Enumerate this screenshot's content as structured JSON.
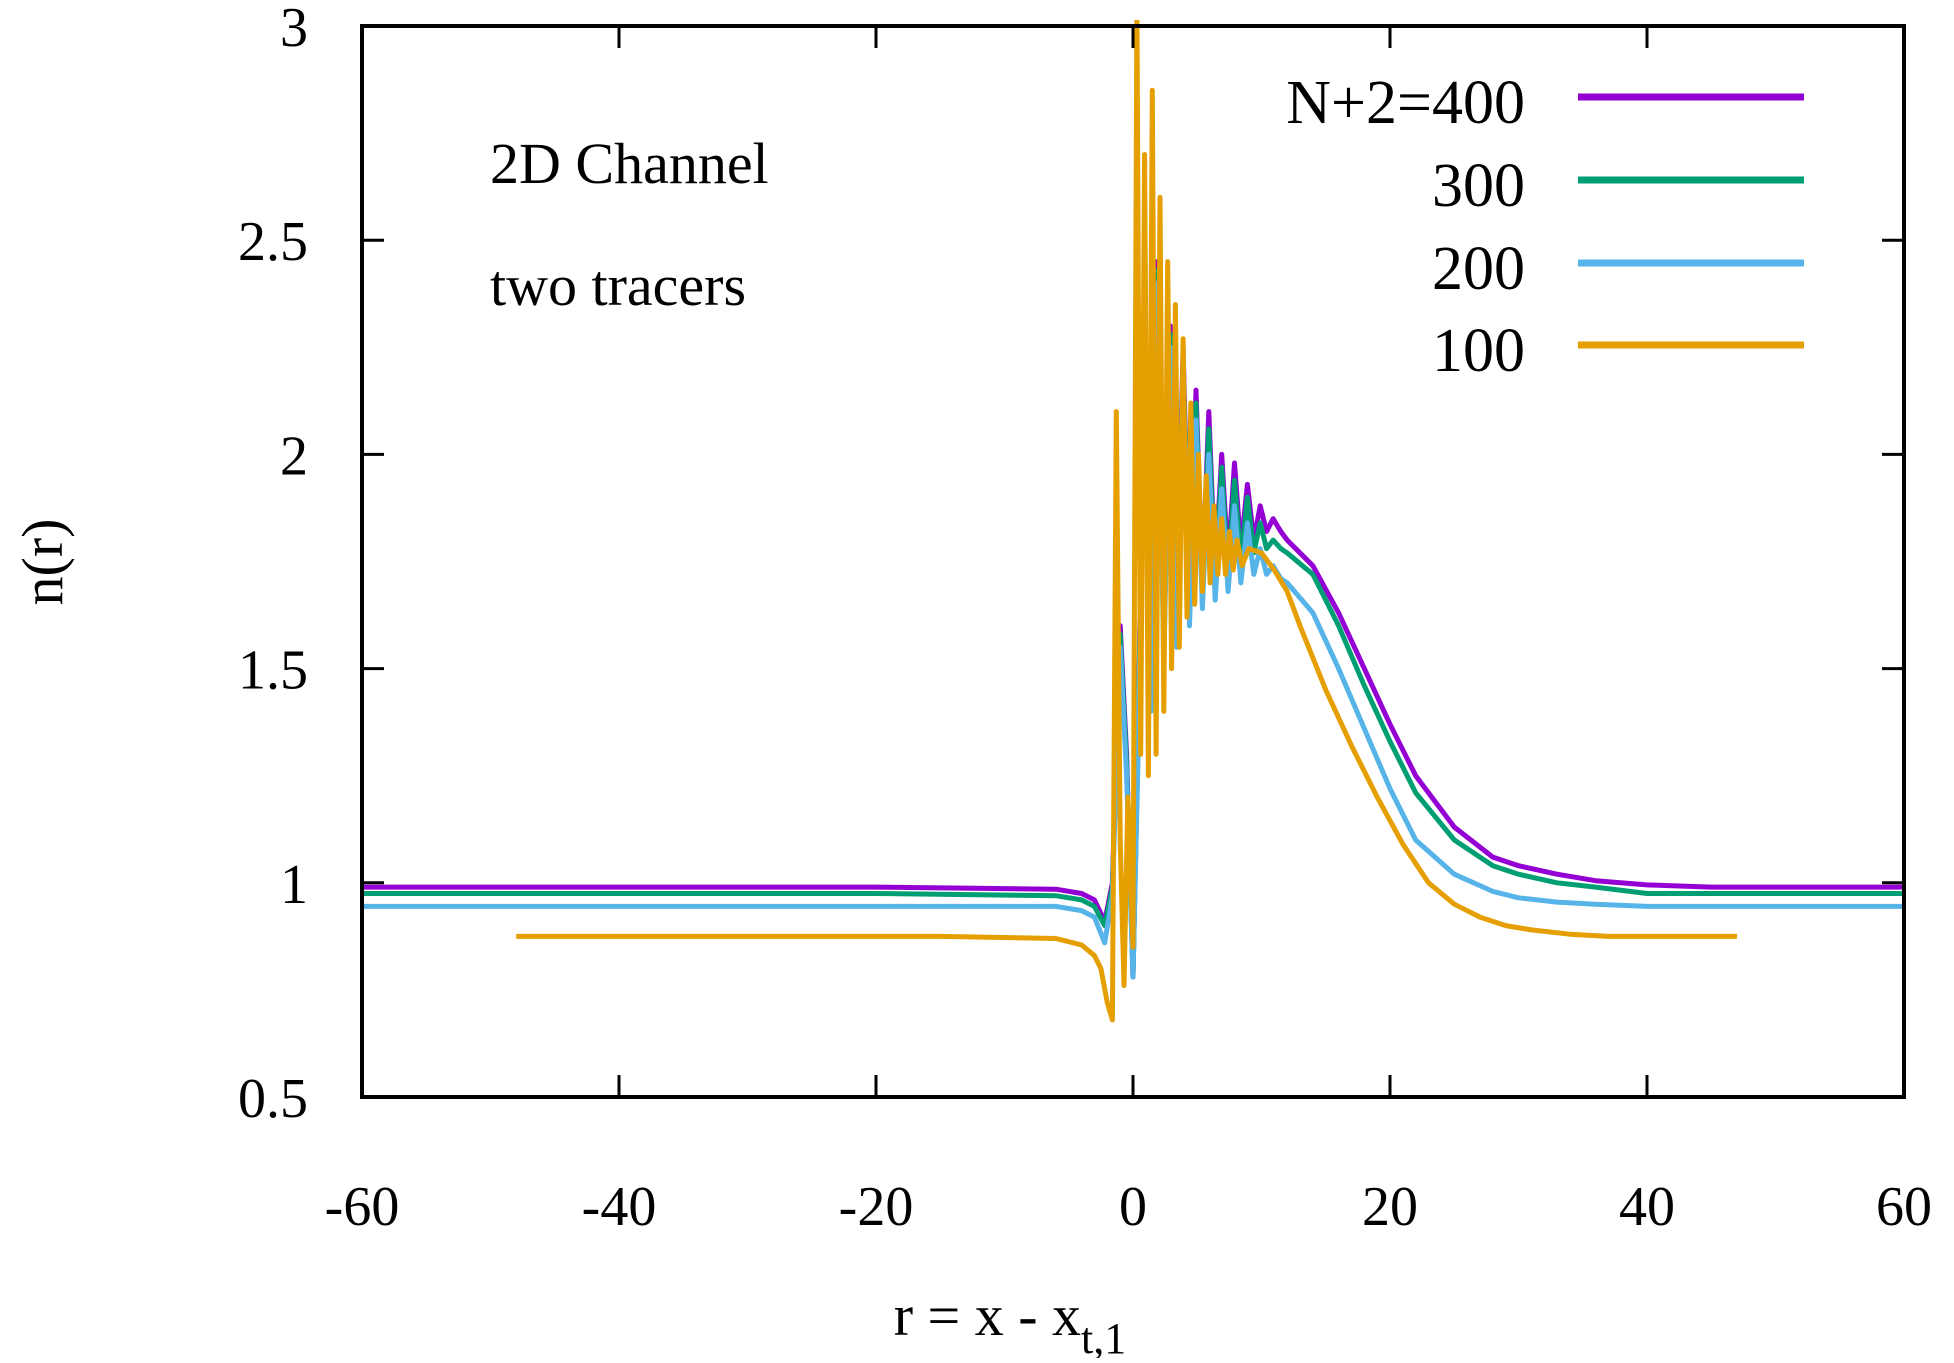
{
  "chart_data": {
    "type": "line",
    "title": "",
    "xlabel": "r = x - x",
    "xlabel_subscript": "t,1",
    "ylabel": "n(r)",
    "xlim": [
      -60,
      60
    ],
    "ylim": [
      0.5,
      3
    ],
    "xticks": [
      -60,
      -40,
      -20,
      0,
      20,
      40,
      60
    ],
    "xtick_labels": [
      "-60",
      "-40",
      "-20",
      "0",
      "20",
      "40",
      "60"
    ],
    "yticks": [
      0.5,
      1,
      1.5,
      2,
      2.5,
      3
    ],
    "ytick_labels": [
      "0.5",
      "1",
      "1.5",
      "2",
      "2.5",
      "3"
    ],
    "grid": false,
    "legend_position": "top-right",
    "annotations": [
      "2D Channel",
      "two tracers"
    ],
    "colors": {
      "frame": "#000000",
      "s400": "#9400d3",
      "s300": "#009e73",
      "s200": "#56b4e9",
      "s100": "#e69f00"
    },
    "series": [
      {
        "name": "N+2=400",
        "color": "#9400d3",
        "x": [
          -60,
          -40,
          -20,
          -6,
          -4,
          -3,
          -2.2,
          -1.6,
          -1.0,
          -0.5,
          0.0,
          0.4,
          0.9,
          1.4,
          1.9,
          2.4,
          2.9,
          3.4,
          3.9,
          4.4,
          4.9,
          5.4,
          5.9,
          6.4,
          6.9,
          7.4,
          7.9,
          8.4,
          8.9,
          9.4,
          9.9,
          10.4,
          10.9,
          11.5,
          12,
          14,
          16,
          18,
          20,
          22,
          25,
          28,
          30,
          33,
          36,
          40,
          45,
          50,
          55,
          60
        ],
        "y": [
          0.99,
          0.99,
          0.99,
          0.985,
          0.975,
          0.96,
          0.91,
          1.0,
          1.6,
          1.3,
          0.78,
          1.35,
          2.3,
          1.45,
          2.45,
          1.55,
          2.3,
          1.6,
          2.25,
          1.65,
          2.15,
          1.7,
          2.1,
          1.72,
          2.0,
          1.75,
          1.98,
          1.78,
          1.93,
          1.8,
          1.88,
          1.82,
          1.85,
          1.82,
          1.8,
          1.74,
          1.63,
          1.5,
          1.37,
          1.25,
          1.13,
          1.06,
          1.04,
          1.02,
          1.005,
          0.995,
          0.99,
          0.99,
          0.99,
          0.99
        ]
      },
      {
        "name": "300",
        "color": "#009e73",
        "x": [
          -60,
          -40,
          -20,
          -6,
          -4,
          -3,
          -2.2,
          -1.6,
          -1.0,
          -0.5,
          0.0,
          0.4,
          0.9,
          1.4,
          1.9,
          2.4,
          2.9,
          3.4,
          3.9,
          4.4,
          4.9,
          5.4,
          5.9,
          6.4,
          6.9,
          7.4,
          7.9,
          8.4,
          8.9,
          9.4,
          9.9,
          10.4,
          10.9,
          11.5,
          12,
          14,
          16,
          18,
          20,
          22,
          25,
          28,
          30,
          33,
          36,
          40,
          45,
          50,
          55,
          60
        ],
        "y": [
          0.975,
          0.975,
          0.975,
          0.97,
          0.96,
          0.945,
          0.9,
          0.99,
          1.58,
          1.28,
          0.78,
          1.33,
          2.28,
          1.43,
          2.43,
          1.53,
          2.28,
          1.58,
          2.22,
          1.63,
          2.12,
          1.68,
          2.06,
          1.7,
          1.97,
          1.72,
          1.94,
          1.75,
          1.9,
          1.77,
          1.84,
          1.78,
          1.8,
          1.78,
          1.77,
          1.72,
          1.6,
          1.46,
          1.33,
          1.21,
          1.1,
          1.04,
          1.02,
          1.0,
          0.99,
          0.975,
          0.975,
          0.975,
          0.975,
          0.975
        ]
      },
      {
        "name": "200",
        "color": "#56b4e9",
        "x": [
          -60,
          -40,
          -20,
          -6,
          -4,
          -3,
          -2.2,
          -1.6,
          -1.0,
          -0.5,
          0.0,
          0.4,
          0.9,
          1.4,
          1.9,
          2.4,
          2.9,
          3.4,
          3.9,
          4.4,
          4.9,
          5.4,
          5.9,
          6.4,
          6.9,
          7.4,
          7.9,
          8.4,
          8.9,
          9.4,
          9.9,
          10.4,
          10.9,
          11.5,
          12,
          14,
          16,
          18,
          20,
          22,
          25,
          28,
          30,
          33,
          36,
          40,
          45,
          50,
          55,
          60
        ],
        "y": [
          0.945,
          0.945,
          0.945,
          0.945,
          0.935,
          0.92,
          0.86,
          0.97,
          1.55,
          1.25,
          0.78,
          1.3,
          2.25,
          1.4,
          2.4,
          1.5,
          2.25,
          1.55,
          2.18,
          1.6,
          2.08,
          1.64,
          2.0,
          1.66,
          1.92,
          1.68,
          1.88,
          1.7,
          1.84,
          1.72,
          1.78,
          1.72,
          1.74,
          1.71,
          1.7,
          1.63,
          1.5,
          1.36,
          1.22,
          1.1,
          1.02,
          0.98,
          0.965,
          0.955,
          0.95,
          0.945,
          0.945,
          0.945,
          0.945,
          0.945
        ]
      },
      {
        "name": "100",
        "color": "#e69f00",
        "x": [
          -48,
          -30,
          -15,
          -6,
          -4,
          -3,
          -2.5,
          -2.0,
          -1.6,
          -1.3,
          -1.0,
          -0.7,
          -0.4,
          0.0,
          0.3,
          0.6,
          0.9,
          1.2,
          1.5,
          1.8,
          2.1,
          2.4,
          2.7,
          3.0,
          3.3,
          3.6,
          3.9,
          4.2,
          4.5,
          4.8,
          5.1,
          5.4,
          5.7,
          6.0,
          6.3,
          6.6,
          6.9,
          7.2,
          7.5,
          7.8,
          8.1,
          8.5,
          9,
          10,
          11,
          12,
          13,
          15,
          17,
          19,
          21,
          23,
          25,
          27,
          29,
          31,
          34,
          37,
          40,
          43,
          47
        ],
        "y": [
          0.875,
          0.875,
          0.875,
          0.87,
          0.855,
          0.83,
          0.8,
          0.72,
          0.68,
          2.1,
          1.1,
          0.76,
          1.2,
          0.85,
          3.05,
          1.3,
          2.7,
          1.25,
          2.85,
          1.3,
          2.6,
          1.4,
          2.45,
          1.5,
          2.35,
          1.55,
          2.27,
          1.62,
          2.12,
          1.65,
          2.0,
          1.68,
          1.95,
          1.7,
          1.88,
          1.72,
          1.85,
          1.72,
          1.82,
          1.73,
          1.8,
          1.74,
          1.78,
          1.77,
          1.73,
          1.68,
          1.6,
          1.45,
          1.32,
          1.2,
          1.09,
          1.0,
          0.95,
          0.92,
          0.9,
          0.89,
          0.88,
          0.875,
          0.875,
          0.875,
          0.875
        ]
      }
    ]
  }
}
